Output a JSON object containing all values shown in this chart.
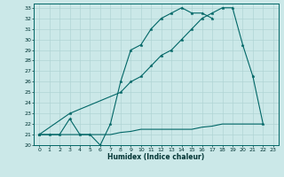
{
  "xlabel": "Humidex (Indice chaleur)",
  "background_color": "#cbe8e8",
  "grid_color": "#b0d4d4",
  "line_color": "#006666",
  "xlim": [
    -0.5,
    23.5
  ],
  "ylim": [
    20,
    33.4
  ],
  "xticks": [
    0,
    1,
    2,
    3,
    4,
    5,
    6,
    7,
    8,
    9,
    10,
    11,
    12,
    13,
    14,
    15,
    16,
    17,
    18,
    19,
    20,
    21,
    22,
    23
  ],
  "yticks": [
    20,
    21,
    22,
    23,
    24,
    25,
    26,
    27,
    28,
    29,
    30,
    31,
    32,
    33
  ],
  "line1_x": [
    0,
    1,
    2,
    3,
    4,
    5,
    6,
    7,
    8,
    9,
    10,
    11,
    12,
    13,
    14,
    15,
    16,
    17
  ],
  "line1_y": [
    21,
    21,
    21,
    22.5,
    21,
    21,
    20,
    22,
    26,
    29,
    29.5,
    31,
    32,
    32.5,
    33,
    32.5,
    32.5,
    32
  ],
  "line2_x": [
    0,
    1,
    2,
    3,
    4,
    5,
    6,
    7,
    8,
    9,
    10,
    11,
    12,
    13,
    14,
    15,
    16,
    17,
    18,
    19,
    20,
    21,
    22
  ],
  "line2_y": [
    21,
    21,
    21,
    21,
    21,
    21,
    21,
    21,
    21.2,
    21.3,
    21.5,
    21.5,
    21.5,
    21.5,
    21.5,
    21.5,
    21.7,
    21.8,
    22,
    22,
    22,
    22,
    22
  ],
  "line3_x": [
    0,
    3,
    8,
    9,
    10,
    11,
    12,
    13,
    14,
    15,
    16,
    17,
    18,
    19,
    20,
    21,
    22
  ],
  "line3_y": [
    21,
    23,
    25,
    26,
    26.5,
    27.5,
    28.5,
    29,
    30,
    31,
    32,
    32.5,
    33,
    33,
    29.5,
    26.5,
    22
  ]
}
